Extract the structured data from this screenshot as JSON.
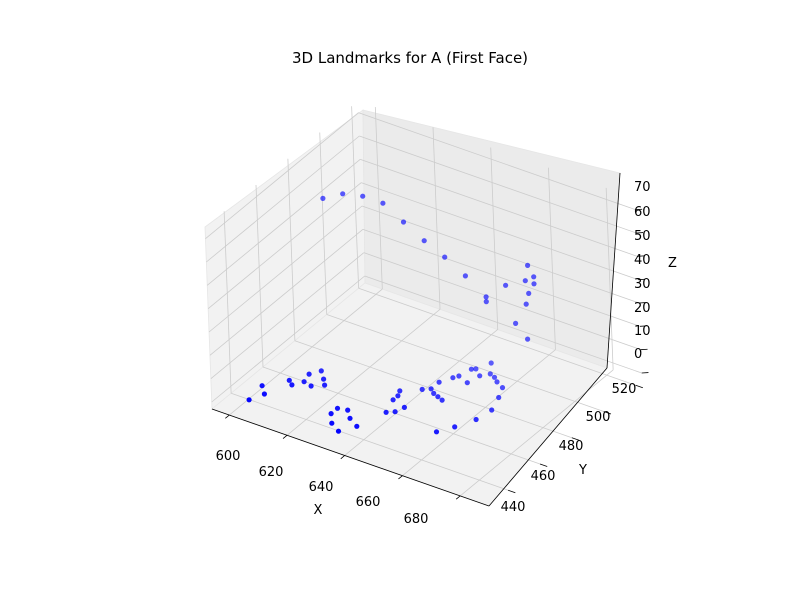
{
  "chart_data": {
    "type": "scatter",
    "title": "3D Landmarks for A (First Face)",
    "xlabel": "X",
    "ylabel": "Y",
    "zlabel": "Z",
    "x_ticks": [
      "600",
      "620",
      "640",
      "660",
      "680"
    ],
    "y_ticks": [
      "440",
      "460",
      "480",
      "500",
      "520"
    ],
    "z_ticks": [
      "0",
      "10",
      "20",
      "30",
      "40",
      "50",
      "60",
      "70"
    ],
    "xlim": [
      594,
      690
    ],
    "ylim": [
      428,
      524
    ],
    "zlim": [
      -3,
      75
    ],
    "grid": true,
    "point_color": "#0000ff",
    "series": [
      {
        "marker": "circle",
        "x": [
          600,
          607,
          614,
          621,
          628,
          635,
          642,
          649,
          656,
          670,
          671,
          673,
          673,
          671,
          663,
          670,
          656,
          666,
          670,
          645,
          647,
          650,
          652,
          654,
          653,
          651,
          649,
          647,
          649,
          651,
          654,
          655,
          657,
          659,
          661,
          664,
          666,
          668,
          667,
          664,
          661,
          641,
          640,
          641,
          645,
          646,
          643,
          605,
          610,
          612,
          608,
          606,
          613,
          615,
          618,
          620,
          617,
          614,
          630,
          630,
          633,
          637,
          640,
          636,
          633
        ],
        "y": [
          490,
          490,
          490,
          490,
          490,
          490,
          490,
          490,
          490,
          490,
          490,
          490,
          490,
          490,
          490,
          490,
          490,
          490,
          490,
          468,
          475,
          482,
          489,
          495,
          466,
          467,
          468,
          470,
          480,
          488,
          480,
          486,
          489,
          488,
          486,
          484,
          478,
          470,
          462,
          454,
          448,
          460,
          463,
          457,
          451,
          455,
          449,
          440,
          448,
          446,
          436,
          430,
          455,
          459,
          455,
          452,
          449,
          450,
          442,
          438,
          433,
          430,
          436,
          439,
          443
        ],
        "z": [
          55,
          60,
          62,
          62,
          57,
          52,
          48,
          43,
          37,
          50,
          57,
          53,
          50,
          45,
          45,
          40,
          35,
          30,
          25,
          5,
          5,
          5,
          5,
          5,
          5,
          5,
          5,
          5,
          5,
          5,
          5,
          5,
          5,
          5,
          5,
          5,
          5,
          5,
          5,
          5,
          5,
          5,
          5,
          5,
          5,
          5,
          5,
          5,
          5,
          5,
          5,
          5,
          5,
          5,
          5,
          5,
          5,
          5,
          5,
          5,
          5,
          5,
          5,
          5,
          5
        ]
      }
    ]
  }
}
